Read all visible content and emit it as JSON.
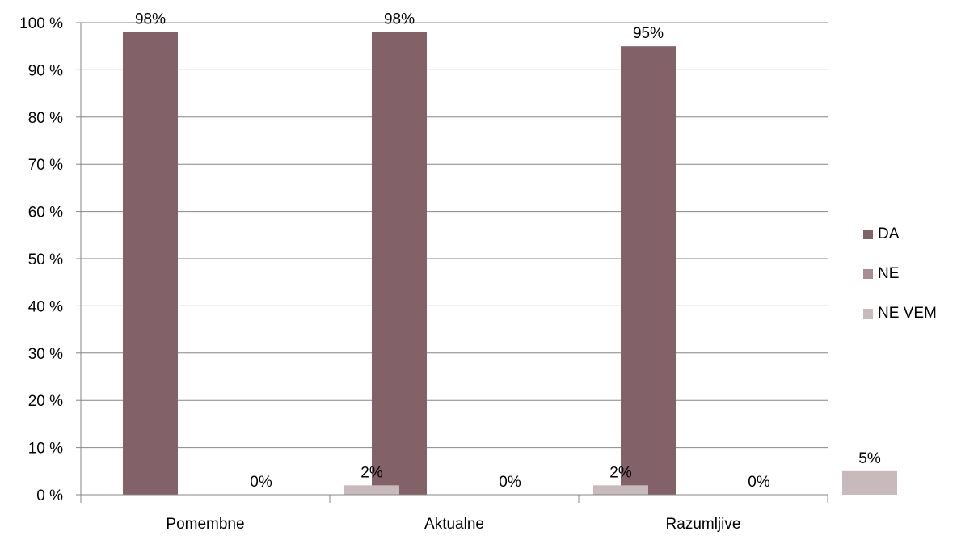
{
  "chart_data": {
    "type": "bar",
    "categories": [
      "Pomembne",
      "Aktualne",
      "Razumljive"
    ],
    "series": [
      {
        "name": "DA",
        "values": [
          98,
          98,
          95
        ],
        "labels": [
          "98%",
          "98%",
          "95%"
        ],
        "color": "#826169"
      },
      {
        "name": "NE",
        "values": [
          0,
          0,
          0
        ],
        "labels": [
          "0%",
          "0%",
          "0%"
        ],
        "color": "#A88C91"
      },
      {
        "name": "NE VEM",
        "values": [
          2,
          2,
          5
        ],
        "labels": [
          "2%",
          "2%",
          "5%"
        ],
        "color": "#C8B9BC"
      }
    ],
    "ylim": [
      0,
      100
    ],
    "yticks": [
      0,
      10,
      20,
      30,
      40,
      50,
      60,
      70,
      80,
      90,
      100
    ],
    "ytick_labels": [
      "0 %",
      "10 %",
      "20 %",
      "30 %",
      "40 %",
      "50 %",
      "60 %",
      "70 %",
      "80 %",
      "90 %",
      "100 %"
    ],
    "grid": true,
    "legend": "right"
  }
}
